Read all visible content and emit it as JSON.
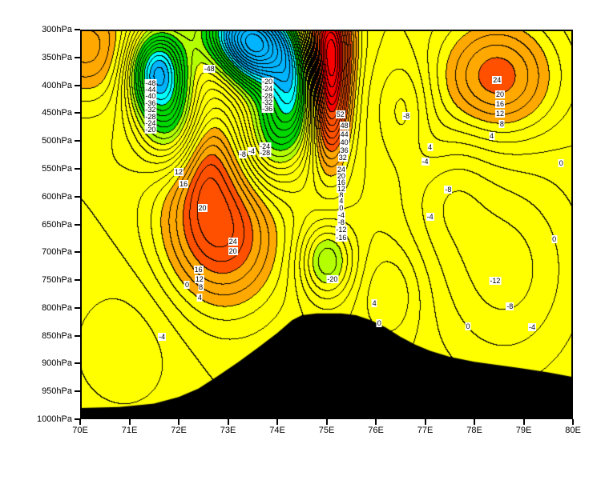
{
  "page": {
    "background": "#ffffff"
  },
  "chart_data": {
    "type": "contour",
    "title": "",
    "xlabel": "",
    "ylabel": "",
    "x_axis": {
      "min": 70,
      "max": 80,
      "tick_values": [
        70,
        71,
        72,
        73,
        74,
        75,
        76,
        77,
        78,
        79,
        80
      ],
      "tick_labels": [
        "70E",
        "71E",
        "72E",
        "73E",
        "74E",
        "75E",
        "76E",
        "77E",
        "78E",
        "79E",
        "80E"
      ]
    },
    "y_axis": {
      "min": 300,
      "max": 1000,
      "unit": "hPa",
      "tick_values": [
        300,
        350,
        400,
        450,
        500,
        550,
        600,
        650,
        700,
        750,
        800,
        850,
        900,
        950,
        1000
      ],
      "tick_labels": [
        "300hPa",
        "350hPa",
        "400hPa",
        "450hPa",
        "500hPa",
        "550hPa",
        "600hPa",
        "650hPa",
        "700hPa",
        "750hPa",
        "800hPa",
        "850hPa",
        "900hPa",
        "950hPa",
        "1000hPa"
      ]
    },
    "contour_interval": 4,
    "line_color": "#000000",
    "terrain_color": "#000000",
    "fill_bands": [
      {
        "max": -52,
        "color": "#00b4ff"
      },
      {
        "max": -44,
        "color": "#00ffff"
      },
      {
        "max": -24,
        "color": "#00d800"
      },
      {
        "max": -16,
        "color": "#b4ff00"
      },
      {
        "max": 12,
        "color": "#ffff00"
      },
      {
        "max": 24,
        "color": "#ffa800"
      },
      {
        "max": 48,
        "color": "#ff5000"
      },
      {
        "max": 100000,
        "color": "#fa0000"
      }
    ],
    "features": [
      {
        "lon": 75.08,
        "p": 395,
        "amp": 58,
        "slon": 0.28,
        "sp": 95
      },
      {
        "lon": 75.0,
        "p": 308,
        "amp": 26,
        "slon": 0.4,
        "sp": 55
      },
      {
        "lon": 73.05,
        "p": 668,
        "amp": 26,
        "slon": 0.78,
        "sp": 95
      },
      {
        "lon": 72.3,
        "p": 600,
        "amp": 13,
        "slon": 0.7,
        "sp": 120
      },
      {
        "lon": 78.45,
        "p": 385,
        "amp": 27,
        "slon": 0.85,
        "sp": 75
      },
      {
        "lon": 71.55,
        "p": 372,
        "amp": -55,
        "slon": 0.42,
        "sp": 55
      },
      {
        "lon": 71.88,
        "p": 470,
        "amp": -28,
        "slon": 0.5,
        "sp": 62
      },
      {
        "lon": 73.6,
        "p": 335,
        "amp": -58,
        "slon": 0.5,
        "sp": 50
      },
      {
        "lon": 74.35,
        "p": 400,
        "amp": -38,
        "slon": 0.33,
        "sp": 75
      },
      {
        "lon": 73.15,
        "p": 298,
        "amp": -36,
        "slon": 0.6,
        "sp": 45
      },
      {
        "lon": 73.85,
        "p": 482,
        "amp": -26,
        "slon": 0.4,
        "sp": 70
      },
      {
        "lon": 75.0,
        "p": 715,
        "amp": -24,
        "slon": 0.38,
        "sp": 48
      },
      {
        "lon": 78.6,
        "p": 730,
        "amp": -14,
        "slon": 1.05,
        "sp": 130
      },
      {
        "lon": 76.6,
        "p": 450,
        "amp": -12,
        "slon": 0.4,
        "sp": 70
      },
      {
        "lon": 77.4,
        "p": 575,
        "amp": -9,
        "slon": 0.6,
        "sp": 85
      },
      {
        "lon": 70.15,
        "p": 330,
        "amp": 22,
        "slon": 0.8,
        "sp": 70
      },
      {
        "lon": 70.9,
        "p": 872,
        "amp": -7,
        "slon": 0.9,
        "sp": 95
      },
      {
        "lon": 76.3,
        "p": 775,
        "amp": 9,
        "slon": 0.45,
        "sp": 60
      },
      {
        "lon": 77.0,
        "p": 500,
        "amp": 7,
        "slon": 0.5,
        "sp": 60
      },
      {
        "lon": 72.55,
        "p": 520,
        "amp": 14,
        "slon": 0.35,
        "sp": 70
      }
    ],
    "terrain_profile": [
      [
        70.0,
        980
      ],
      [
        70.8,
        978
      ],
      [
        71.5,
        972
      ],
      [
        72.0,
        960
      ],
      [
        72.4,
        945
      ],
      [
        72.8,
        922
      ],
      [
        73.2,
        898
      ],
      [
        73.6,
        872
      ],
      [
        74.0,
        845
      ],
      [
        74.3,
        822
      ],
      [
        74.5,
        813
      ],
      [
        74.8,
        810
      ],
      [
        75.3,
        810
      ],
      [
        75.6,
        813
      ],
      [
        75.9,
        822
      ],
      [
        76.2,
        835
      ],
      [
        76.5,
        852
      ],
      [
        76.8,
        866
      ],
      [
        77.1,
        877
      ],
      [
        77.5,
        888
      ],
      [
        78.0,
        897
      ],
      [
        78.5,
        903
      ],
      [
        79.0,
        909
      ],
      [
        79.5,
        916
      ],
      [
        80.0,
        924
      ]
    ],
    "contour_labels": [
      {
        "value": 52,
        "lon": 75.28,
        "p": 452
      },
      {
        "value": 48,
        "lon": 75.36,
        "p": 473
      },
      {
        "value": 44,
        "lon": 75.36,
        "p": 489
      },
      {
        "value": 40,
        "lon": 75.36,
        "p": 503
      },
      {
        "value": 36,
        "lon": 75.36,
        "p": 517
      },
      {
        "value": 32,
        "lon": 75.33,
        "p": 530
      },
      {
        "value": 24,
        "lon": 75.3,
        "p": 551
      },
      {
        "value": 20,
        "lon": 75.3,
        "p": 563
      },
      {
        "value": 16,
        "lon": 75.3,
        "p": 575
      },
      {
        "value": 12,
        "lon": 75.3,
        "p": 586
      },
      {
        "value": 8,
        "lon": 75.3,
        "p": 597
      },
      {
        "value": 4,
        "lon": 75.3,
        "p": 608
      },
      {
        "value": 0,
        "lon": 75.3,
        "p": 620
      },
      {
        "value": -4,
        "lon": 75.3,
        "p": 633
      },
      {
        "value": -8,
        "lon": 75.3,
        "p": 646
      },
      {
        "value": -12,
        "lon": 75.3,
        "p": 659
      },
      {
        "value": -16,
        "lon": 75.3,
        "p": 673
      },
      {
        "value": -20,
        "lon": 75.12,
        "p": 748
      },
      {
        "value": -48,
        "lon": 71.43,
        "p": 396
      },
      {
        "value": -44,
        "lon": 71.43,
        "p": 408
      },
      {
        "value": -40,
        "lon": 71.43,
        "p": 420
      },
      {
        "value": -36,
        "lon": 71.43,
        "p": 432
      },
      {
        "value": -32,
        "lon": 71.43,
        "p": 444
      },
      {
        "value": -28,
        "lon": 71.43,
        "p": 456
      },
      {
        "value": -24,
        "lon": 71.43,
        "p": 468
      },
      {
        "value": -20,
        "lon": 71.43,
        "p": 480
      },
      {
        "value": -48,
        "lon": 72.62,
        "p": 370
      },
      {
        "value": -20,
        "lon": 73.8,
        "p": 394
      },
      {
        "value": -24,
        "lon": 73.8,
        "p": 407
      },
      {
        "value": -28,
        "lon": 73.8,
        "p": 419
      },
      {
        "value": -32,
        "lon": 73.8,
        "p": 431
      },
      {
        "value": -36,
        "lon": 73.8,
        "p": 443
      },
      {
        "value": -24,
        "lon": 73.75,
        "p": 510
      },
      {
        "value": -28,
        "lon": 73.75,
        "p": 522
      },
      {
        "value": -8,
        "lon": 73.3,
        "p": 524
      },
      {
        "value": -4,
        "lon": 73.48,
        "p": 519
      },
      {
        "value": 12,
        "lon": 72.0,
        "p": 556
      },
      {
        "value": 16,
        "lon": 72.1,
        "p": 577
      },
      {
        "value": 20,
        "lon": 72.48,
        "p": 620
      },
      {
        "value": 24,
        "lon": 73.1,
        "p": 681
      },
      {
        "value": 20,
        "lon": 73.1,
        "p": 698
      },
      {
        "value": 16,
        "lon": 72.4,
        "p": 731
      },
      {
        "value": 12,
        "lon": 72.42,
        "p": 748
      },
      {
        "value": 8,
        "lon": 72.45,
        "p": 763
      },
      {
        "value": 4,
        "lon": 72.43,
        "p": 781
      },
      {
        "value": 0,
        "lon": 72.17,
        "p": 758
      },
      {
        "value": -4,
        "lon": 71.66,
        "p": 852
      },
      {
        "value": 24,
        "lon": 78.46,
        "p": 391
      },
      {
        "value": 20,
        "lon": 78.52,
        "p": 417
      },
      {
        "value": 16,
        "lon": 78.52,
        "p": 434
      },
      {
        "value": 12,
        "lon": 78.52,
        "p": 451
      },
      {
        "value": 8,
        "lon": 78.56,
        "p": 469
      },
      {
        "value": 4,
        "lon": 78.35,
        "p": 491
      },
      {
        "value": -8,
        "lon": 76.62,
        "p": 455
      },
      {
        "value": 4,
        "lon": 77.1,
        "p": 511
      },
      {
        "value": -4,
        "lon": 77.0,
        "p": 537
      },
      {
        "value": -8,
        "lon": 77.47,
        "p": 588
      },
      {
        "value": -4,
        "lon": 77.1,
        "p": 637
      },
      {
        "value": 0,
        "lon": 79.76,
        "p": 540
      },
      {
        "value": 0,
        "lon": 79.62,
        "p": 676
      },
      {
        "value": -12,
        "lon": 78.42,
        "p": 751
      },
      {
        "value": -8,
        "lon": 78.72,
        "p": 797
      },
      {
        "value": -4,
        "lon": 79.17,
        "p": 835
      },
      {
        "value": 0,
        "lon": 77.87,
        "p": 833
      },
      {
        "value": 4,
        "lon": 75.97,
        "p": 792
      },
      {
        "value": 0,
        "lon": 76.07,
        "p": 827
      }
    ]
  }
}
